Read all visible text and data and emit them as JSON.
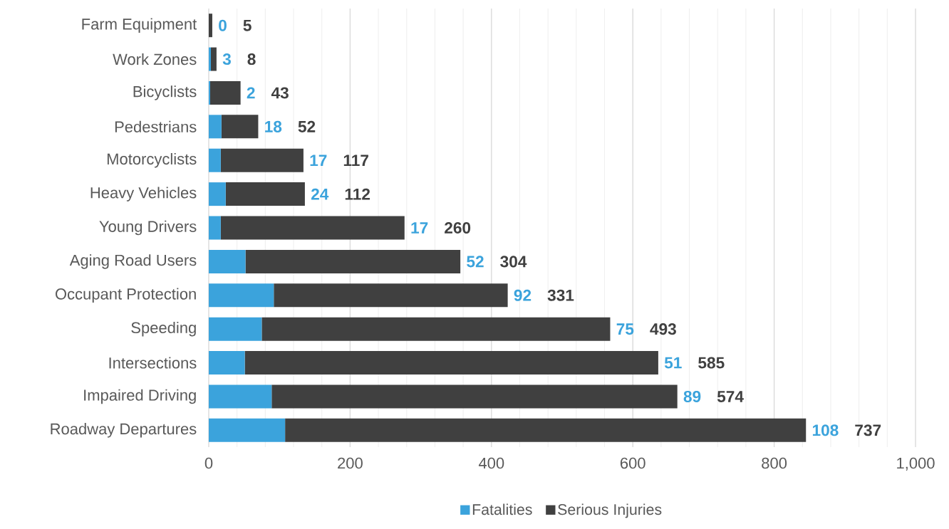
{
  "chart_data": {
    "type": "bar",
    "orientation": "horizontal",
    "stacked": true,
    "categories": [
      "Farm Equipment",
      "Work Zones",
      "Bicyclists",
      "Pedestrians",
      "Motorcyclists",
      "Heavy Vehicles",
      "Young Drivers",
      "Aging Road Users",
      "Occupant Protection",
      "Speeding",
      "Intersections",
      "Impaired Driving",
      "Roadway Departures"
    ],
    "series": [
      {
        "name": "Fatalities",
        "color": "#3ba3dc",
        "values": [
          0,
          3,
          2,
          18,
          17,
          24,
          17,
          52,
          92,
          75,
          51,
          89,
          108
        ]
      },
      {
        "name": "Serious Injuries",
        "color": "#404040",
        "values": [
          5,
          8,
          43,
          52,
          117,
          112,
          260,
          304,
          331,
          493,
          585,
          574,
          737
        ],
        "value_labels": [
          "5",
          "8",
          "43",
          "52",
          "117",
          "112",
          "260",
          "304",
          "331",
          "493",
          "585",
          "574",
          "737"
        ]
      }
    ],
    "annotations": [
      {
        "text": "0",
        "x": 5,
        "y": "Farm Equipment"
      },
      {
        "text": "3",
        "x": 11,
        "y": "Work Zones"
      },
      {
        "text": "2",
        "x": 45,
        "y": "Bicyclists"
      },
      {
        "text": "18",
        "x": 70,
        "y": "Pedestrians"
      },
      {
        "text": "17",
        "x": 134,
        "y": "Motorcyclists"
      },
      {
        "text": "24",
        "x": 136,
        "y": "Heavy Vehicles"
      },
      {
        "text": "17",
        "x": 277,
        "y": "Young Drivers"
      },
      {
        "text": "52",
        "x": 356,
        "y": "Aging Road Users"
      },
      {
        "text": "92",
        "x": 423,
        "y": "Occupant Protection"
      },
      {
        "text": "75",
        "x": 568,
        "y": "Speeding"
      },
      {
        "text": "51",
        "x": 636,
        "y": "Intersections"
      },
      {
        "text": "89",
        "x": 663,
        "y": "Impaired Driving"
      },
      {
        "text": "108",
        "x": 845,
        "y": "Roadway Departures"
      }
    ],
    "xlim": [
      0,
      1000
    ],
    "xticks": [
      0,
      200,
      400,
      600,
      800,
      {
        "value": 1000,
        "label": "1,000"
      }
    ],
    "grid": "x",
    "legend": "bottom"
  }
}
